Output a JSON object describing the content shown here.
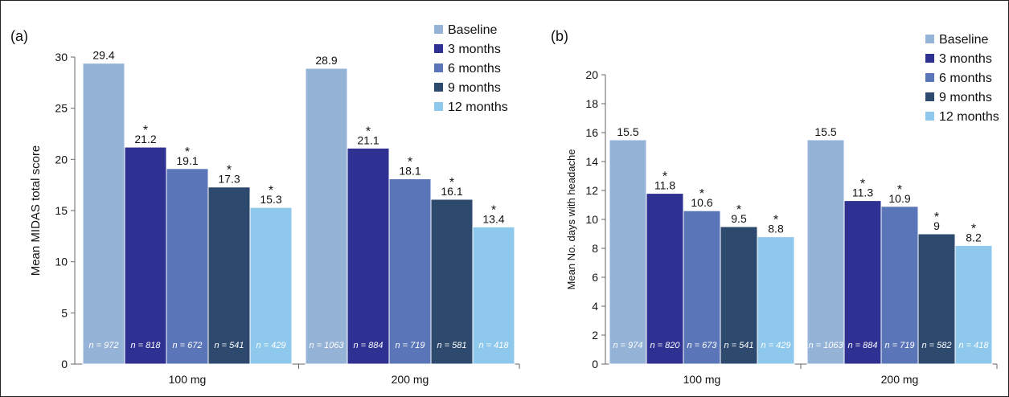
{
  "chart_data": [
    {
      "type": "bar",
      "panel_label": "(a)",
      "ylabel": "Mean MIDAS total score",
      "ylim": [
        0,
        30
      ],
      "yticks": [
        0,
        5,
        10,
        15,
        20,
        25,
        30
      ],
      "categories": [
        "100 mg",
        "200 mg"
      ],
      "legend_position": "top-right",
      "series": [
        {
          "name": "Baseline",
          "color": "#95b3d7",
          "values": [
            29.4,
            28.9
          ],
          "value_labels": [
            "29.4",
            "28.9"
          ],
          "n": [
            "n = 972",
            "n = 1063"
          ],
          "significant": [
            false,
            false
          ]
        },
        {
          "name": "3 months",
          "color": "#2e3192",
          "values": [
            21.2,
            21.1
          ],
          "value_labels": [
            "21.2",
            "21.1"
          ],
          "n": [
            "n = 818",
            "n = 884"
          ],
          "significant": [
            true,
            true
          ]
        },
        {
          "name": "6 months",
          "color": "#5b76b8",
          "values": [
            19.1,
            18.1
          ],
          "value_labels": [
            "19.1",
            "18.1"
          ],
          "n": [
            "n = 672",
            "n = 719"
          ],
          "significant": [
            true,
            true
          ]
        },
        {
          "name": "9 months",
          "color": "#2d4a6e",
          "values": [
            17.3,
            16.1
          ],
          "value_labels": [
            "17.3",
            "16.1"
          ],
          "n": [
            "n = 541",
            "n = 581"
          ],
          "significant": [
            true,
            true
          ]
        },
        {
          "name": "12 months",
          "color": "#8ec8ec",
          "values": [
            15.3,
            13.4
          ],
          "value_labels": [
            "15.3",
            "13.4"
          ],
          "n": [
            "n = 429",
            "n = 418"
          ],
          "significant": [
            true,
            true
          ]
        }
      ],
      "significance_marker": "*"
    },
    {
      "type": "bar",
      "panel_label": "(b)",
      "ylabel": "Mean No. days with headache",
      "ylim": [
        0,
        20
      ],
      "yticks": [
        0,
        2,
        4,
        6,
        8,
        10,
        12,
        14,
        16,
        18,
        20
      ],
      "categories": [
        "100 mg",
        "200 mg"
      ],
      "legend_position": "top-right",
      "series": [
        {
          "name": "Baseline",
          "color": "#95b3d7",
          "values": [
            15.5,
            15.5
          ],
          "value_labels": [
            "15.5",
            "15.5"
          ],
          "n": [
            "n = 974",
            "n = 1063"
          ],
          "significant": [
            false,
            false
          ]
        },
        {
          "name": "3 months",
          "color": "#2e3192",
          "values": [
            11.8,
            11.3
          ],
          "value_labels": [
            "11.8",
            "11.3"
          ],
          "n": [
            "n = 820",
            "n = 884"
          ],
          "significant": [
            true,
            true
          ]
        },
        {
          "name": "6 months",
          "color": "#5b76b8",
          "values": [
            10.6,
            10.9
          ],
          "value_labels": [
            "10.6",
            "10.9"
          ],
          "n": [
            "n = 673",
            "n = 719"
          ],
          "significant": [
            true,
            true
          ]
        },
        {
          "name": "9 months",
          "color": "#2d4a6e",
          "values": [
            9.5,
            9.0
          ],
          "value_labels": [
            "9.5",
            "9"
          ],
          "n": [
            "n = 541",
            "n = 582"
          ],
          "significant": [
            true,
            true
          ]
        },
        {
          "name": "12 months",
          "color": "#8ec8ec",
          "values": [
            8.8,
            8.2
          ],
          "value_labels": [
            "8.8",
            "8.2"
          ],
          "n": [
            "n = 429",
            "n = 418"
          ],
          "significant": [
            true,
            true
          ]
        }
      ],
      "significance_marker": "*"
    }
  ]
}
